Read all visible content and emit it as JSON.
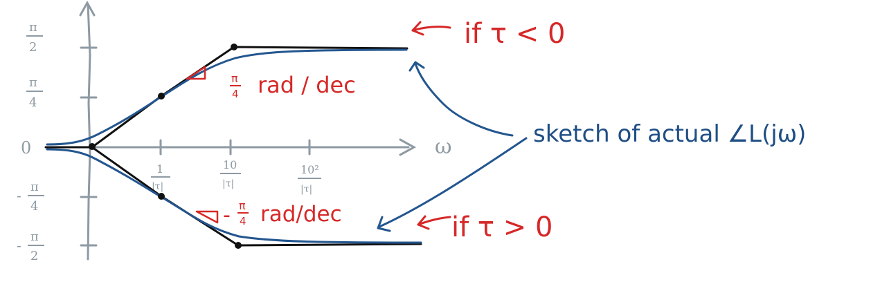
{
  "y_axis": {
    "ticks": [
      {
        "pi": "π",
        "den": "2"
      },
      {
        "pi": "π",
        "den": "4"
      },
      {
        "pi": "0",
        "den": ""
      },
      {
        "pi": "π",
        "den": "4",
        "sign": "-"
      },
      {
        "pi": "π",
        "den": "2",
        "sign": "-"
      }
    ]
  },
  "x_axis": {
    "label": "ω",
    "ticks": [
      {
        "num": "1",
        "den": "|τ|"
      },
      {
        "num": "10",
        "den": "|τ|"
      },
      {
        "num": "10²",
        "den": "|τ|"
      }
    ]
  },
  "annotations": {
    "upper_slope": {
      "num": "π",
      "den": "4",
      "unit": "rad / dec"
    },
    "lower_slope": {
      "sign": "-",
      "num": "π",
      "den": "4",
      "unit": "rad/dec"
    },
    "if_tau_neg": "if  τ < 0",
    "if_tau_pos": "if  τ > 0",
    "sketch_label": "sketch of actual  ∠L(jω)"
  },
  "colors": {
    "axis": "#8e9aa3",
    "asymptote": "#111111",
    "actual": "#23568f",
    "annotation_red": "#d62828",
    "annotation_blue": "#1f4e85"
  }
}
